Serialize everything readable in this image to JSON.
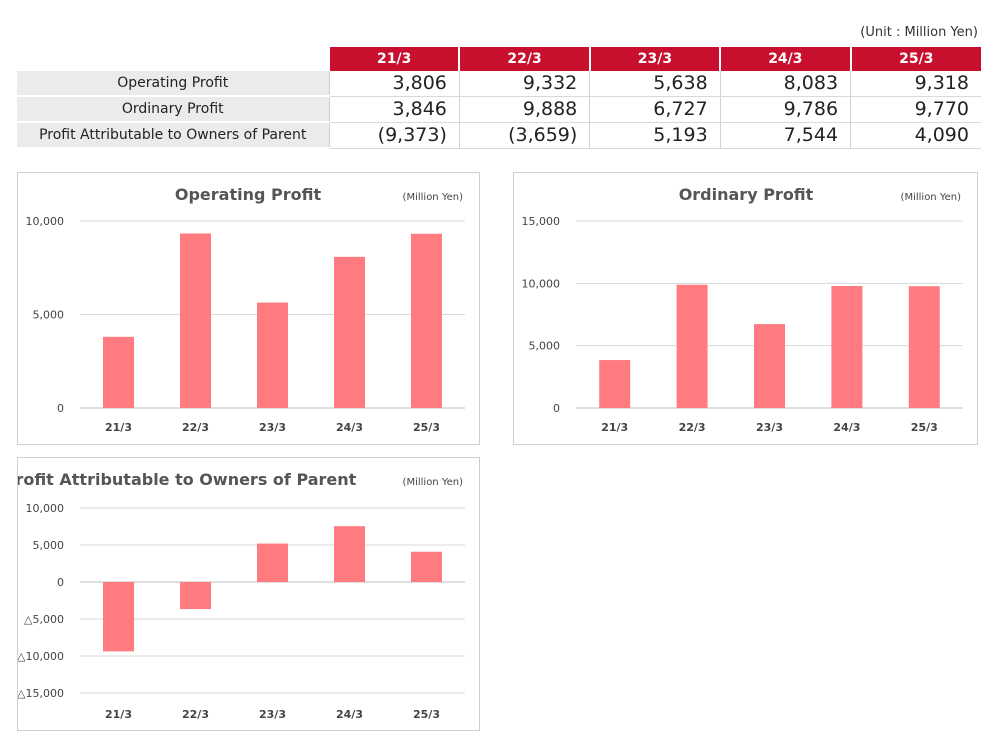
{
  "unit_note": "(Unit : Million Yen)",
  "table": {
    "years": [
      "21/3",
      "22/3",
      "23/3",
      "24/3",
      "25/3"
    ],
    "rows": [
      {
        "label": "Operating Profit",
        "values": [
          "3,806",
          "9,332",
          "5,638",
          "8,083",
          "9,318"
        ]
      },
      {
        "label": "Ordinary Profit",
        "values": [
          "3,846",
          "9,888",
          "6,727",
          "9,786",
          "9,770"
        ]
      },
      {
        "label": "Profit Attributable to Owners of Parent",
        "values": [
          "(9,373)",
          "(3,659)",
          "5,193",
          "7,544",
          "4,090"
        ]
      }
    ]
  },
  "colors": {
    "bar": "#ff7b7f",
    "header": "#c8102e",
    "grid": "#d9d9d9"
  },
  "chart_data": [
    {
      "type": "bar",
      "title": "Operating Profit",
      "unit": "(Million Yen)",
      "categories": [
        "21/3",
        "22/3",
        "23/3",
        "24/3",
        "25/3"
      ],
      "values": [
        3806,
        9332,
        5638,
        8083,
        9318
      ],
      "ylim": [
        0,
        10000
      ],
      "yticks": [
        0,
        5000,
        10000
      ],
      "ytick_labels": [
        "0",
        "5,000",
        "10,000"
      ],
      "grid": true
    },
    {
      "type": "bar",
      "title": "Ordinary Profit",
      "unit": "(Million Yen)",
      "categories": [
        "21/3",
        "22/3",
        "23/3",
        "24/3",
        "25/3"
      ],
      "values": [
        3846,
        9888,
        6727,
        9786,
        9770
      ],
      "ylim": [
        0,
        15000
      ],
      "yticks": [
        0,
        5000,
        10000,
        15000
      ],
      "ytick_labels": [
        "0",
        "5,000",
        "10,000",
        "15,000"
      ],
      "grid": true
    },
    {
      "type": "bar",
      "title": "Profit Attributable  to Owners of Parent",
      "unit": "(Million Yen)",
      "categories": [
        "21/3",
        "22/3",
        "23/3",
        "24/3",
        "25/3"
      ],
      "values": [
        -9373,
        -3659,
        5193,
        7544,
        4090
      ],
      "ylim": [
        -15000,
        10000
      ],
      "yticks": [
        -15000,
        -10000,
        -5000,
        0,
        5000,
        10000
      ],
      "ytick_labels": [
        "△15,000",
        "△10,000",
        "△5,000",
        "0",
        "5,000",
        "10,000"
      ],
      "grid": true
    }
  ]
}
